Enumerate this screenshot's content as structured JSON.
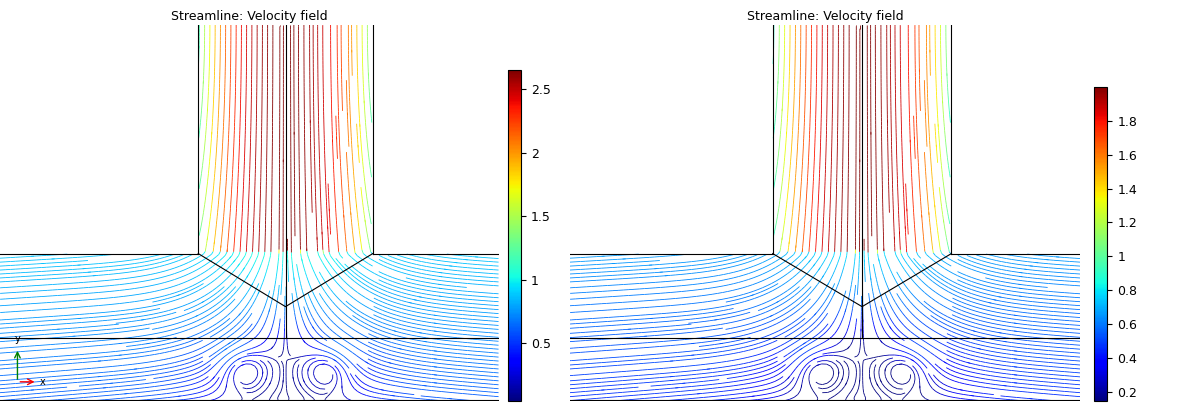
{
  "chart_data": [
    {
      "type": "streamline",
      "title": "Streamline: Velocity field",
      "colorbar": {
        "range": [
          0.05,
          2.65
        ],
        "ticks": [
          0.5,
          1,
          1.5,
          2,
          2.5
        ]
      },
      "triad": {
        "x": "x",
        "y": "y"
      }
    },
    {
      "type": "streamline",
      "title": "Streamline: Velocity field",
      "colorbar": {
        "range": [
          0.15,
          2.0
        ],
        "ticks": [
          0.2,
          0.4,
          0.6,
          0.8,
          1,
          1.2,
          1.4,
          1.6,
          1.8
        ]
      }
    }
  ]
}
